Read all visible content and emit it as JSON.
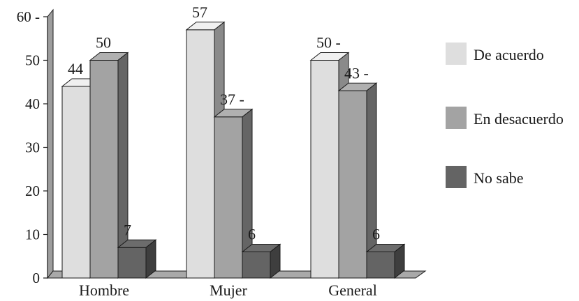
{
  "chart_data": {
    "type": "bar",
    "three_d": true,
    "categories": [
      "Hombre",
      "Mujer",
      "General"
    ],
    "series": [
      {
        "name": "De acuerdo",
        "values": [
          44,
          57,
          50
        ],
        "color": "#dedede"
      },
      {
        "name": "En desacuerdo",
        "values": [
          50,
          37,
          43
        ],
        "color": "#a3a3a3"
      },
      {
        "name": "No sabe",
        "values": [
          7,
          6,
          6
        ],
        "color": "#646464"
      }
    ],
    "data_labels": [
      [
        "44",
        "50",
        "7"
      ],
      [
        "57",
        "37 -",
        "6"
      ],
      [
        "50 -",
        "43 -",
        "6"
      ]
    ],
    "y_ticks": [
      "0",
      "10",
      "20",
      "30",
      "40",
      "50",
      "60 -"
    ],
    "ylim": [
      0,
      60
    ],
    "title": "",
    "xlabel": "",
    "ylabel": "",
    "grid": false,
    "legend": "right",
    "colors": {
      "floor": "#a9a9a9",
      "wall": "#9d9d9d",
      "axis": "#1a1a1a"
    }
  }
}
